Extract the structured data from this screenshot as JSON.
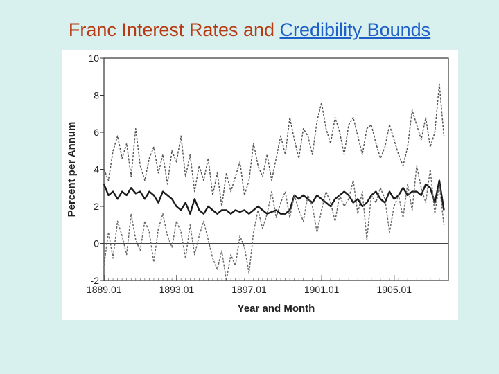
{
  "slide": {
    "title_main": "Franc Interest Rates and",
    "title_link": "Credibility Bounds",
    "accent_color": "#b83a12",
    "link_color": "#1f5fc8",
    "background": "#d9f1ee"
  },
  "chart_data": {
    "type": "line",
    "title": "",
    "xlabel": "Year and Month",
    "ylabel": "Percent per Annum",
    "ylim": [
      -2,
      10
    ],
    "yticks": [
      "-2",
      "0",
      "2",
      "4",
      "6",
      "8",
      "10"
    ],
    "xlim": [
      1889.0,
      1908.0
    ],
    "xticks": [
      "1889.01",
      "1893.01",
      "1897.01",
      "1901.01",
      "1905.01"
    ],
    "grid": false,
    "legend": "none",
    "reference_line": 0,
    "series": [
      {
        "style": "dashed-upper",
        "x": [
          1889.0,
          1889.25,
          1889.5,
          1889.75,
          1890.0,
          1890.25,
          1890.5,
          1890.75,
          1891.0,
          1891.25,
          1891.5,
          1891.75,
          1892.0,
          1892.25,
          1892.5,
          1892.75,
          1893.0,
          1893.25,
          1893.5,
          1893.75,
          1894.0,
          1894.25,
          1894.5,
          1894.75,
          1895.0,
          1895.25,
          1895.5,
          1895.75,
          1896.0,
          1896.25,
          1896.5,
          1896.75,
          1897.0,
          1897.25,
          1897.5,
          1897.75,
          1898.0,
          1898.25,
          1898.5,
          1898.75,
          1899.0,
          1899.25,
          1899.5,
          1899.75,
          1900.0,
          1900.25,
          1900.5,
          1900.75,
          1901.0,
          1901.25,
          1901.5,
          1901.75,
          1902.0,
          1902.25,
          1902.5,
          1902.75,
          1903.0,
          1903.25,
          1903.5,
          1903.75,
          1904.0,
          1904.25,
          1904.5,
          1904.75,
          1905.0,
          1905.25,
          1905.5,
          1905.75,
          1906.0,
          1906.25,
          1906.5,
          1906.75,
          1907.0,
          1907.25,
          1907.5,
          1907.75
        ],
        "y": [
          4.0,
          3.4,
          5.0,
          5.8,
          4.6,
          5.4,
          3.6,
          6.2,
          4.2,
          3.4,
          4.6,
          5.2,
          3.8,
          4.8,
          3.2,
          5.0,
          4.4,
          5.8,
          3.6,
          4.8,
          2.8,
          4.2,
          3.4,
          4.6,
          2.6,
          3.8,
          2.0,
          3.8,
          2.8,
          3.6,
          4.4,
          2.6,
          3.4,
          5.4,
          4.2,
          3.6,
          4.8,
          3.4,
          4.6,
          5.8,
          4.8,
          6.8,
          5.6,
          4.6,
          6.2,
          5.8,
          4.8,
          6.6,
          7.6,
          6.2,
          5.4,
          6.8,
          6.0,
          4.8,
          6.4,
          6.8,
          5.8,
          4.8,
          6.2,
          6.4,
          5.4,
          4.6,
          5.2,
          6.4,
          5.6,
          4.8,
          4.2,
          5.2,
          7.2,
          6.4,
          5.6,
          6.8,
          5.2,
          6.0,
          8.6,
          5.8
        ]
      },
      {
        "style": "solid-bold",
        "x": [
          1889.0,
          1889.25,
          1889.5,
          1889.75,
          1890.0,
          1890.25,
          1890.5,
          1890.75,
          1891.0,
          1891.25,
          1891.5,
          1891.75,
          1892.0,
          1892.25,
          1892.5,
          1892.75,
          1893.0,
          1893.25,
          1893.5,
          1893.75,
          1894.0,
          1894.25,
          1894.5,
          1894.75,
          1895.0,
          1895.25,
          1895.5,
          1895.75,
          1896.0,
          1896.25,
          1896.5,
          1896.75,
          1897.0,
          1897.25,
          1897.5,
          1897.75,
          1898.0,
          1898.25,
          1898.5,
          1898.75,
          1899.0,
          1899.25,
          1899.5,
          1899.75,
          1900.0,
          1900.25,
          1900.5,
          1900.75,
          1901.0,
          1901.25,
          1901.5,
          1901.75,
          1902.0,
          1902.25,
          1902.5,
          1902.75,
          1903.0,
          1903.25,
          1903.5,
          1903.75,
          1904.0,
          1904.25,
          1904.5,
          1904.75,
          1905.0,
          1905.25,
          1905.5,
          1905.75,
          1906.0,
          1906.25,
          1906.5,
          1906.75,
          1907.0,
          1907.25,
          1907.5,
          1907.75
        ],
        "y": [
          3.2,
          2.6,
          2.8,
          2.4,
          2.8,
          2.6,
          3.0,
          2.7,
          2.8,
          2.4,
          2.8,
          2.6,
          2.2,
          2.8,
          2.6,
          2.4,
          2.0,
          1.8,
          2.2,
          1.6,
          2.4,
          1.8,
          1.6,
          2.0,
          1.8,
          1.6,
          1.8,
          1.8,
          1.6,
          1.8,
          1.7,
          1.8,
          1.6,
          1.8,
          2.0,
          1.8,
          1.6,
          1.7,
          1.8,
          1.6,
          1.6,
          1.8,
          2.6,
          2.4,
          2.6,
          2.4,
          2.2,
          2.6,
          2.4,
          2.2,
          2.0,
          2.4,
          2.6,
          2.8,
          2.6,
          2.2,
          2.4,
          2.0,
          2.2,
          2.6,
          2.8,
          2.4,
          2.2,
          2.8,
          2.4,
          2.6,
          3.0,
          2.6,
          2.8,
          2.8,
          2.6,
          3.2,
          3.0,
          2.2,
          3.4,
          1.8
        ]
      },
      {
        "style": "dashed-lower",
        "x": [
          1889.0,
          1889.25,
          1889.5,
          1889.75,
          1890.0,
          1890.25,
          1890.5,
          1890.75,
          1891.0,
          1891.25,
          1891.5,
          1891.75,
          1892.0,
          1892.25,
          1892.5,
          1892.75,
          1893.0,
          1893.25,
          1893.5,
          1893.75,
          1894.0,
          1894.25,
          1894.5,
          1894.75,
          1895.0,
          1895.25,
          1895.5,
          1895.75,
          1896.0,
          1896.25,
          1896.5,
          1896.75,
          1897.0,
          1897.25,
          1897.5,
          1897.75,
          1898.0,
          1898.25,
          1898.5,
          1898.75,
          1899.0,
          1899.25,
          1899.5,
          1899.75,
          1900.0,
          1900.25,
          1900.5,
          1900.75,
          1901.0,
          1901.25,
          1901.5,
          1901.75,
          1902.0,
          1902.25,
          1902.5,
          1902.75,
          1903.0,
          1903.25,
          1903.5,
          1903.75,
          1904.0,
          1904.25,
          1904.5,
          1904.75,
          1905.0,
          1905.25,
          1905.5,
          1905.75,
          1906.0,
          1906.25,
          1906.5,
          1906.75,
          1907.0,
          1907.25,
          1907.5,
          1907.75
        ],
        "y": [
          -1.2,
          0.6,
          -0.8,
          1.2,
          0.4,
          -0.6,
          1.6,
          0.2,
          -0.4,
          1.2,
          0.6,
          -1.0,
          0.8,
          1.6,
          0.4,
          -0.2,
          1.2,
          0.6,
          -0.8,
          1.0,
          -0.6,
          0.4,
          1.2,
          0.2,
          -0.8,
          -1.4,
          -0.4,
          -2.0,
          -0.6,
          -1.2,
          0.4,
          -0.2,
          -1.6,
          0.6,
          1.8,
          0.8,
          1.6,
          2.8,
          1.4,
          2.2,
          2.8,
          1.4,
          2.6,
          1.8,
          1.2,
          2.6,
          2.0,
          0.6,
          1.8,
          2.8,
          2.2,
          1.2,
          2.6,
          2.0,
          2.4,
          3.4,
          1.6,
          2.8,
          0.2,
          2.6,
          2.2,
          3.0,
          2.4,
          0.6,
          2.0,
          2.6,
          1.4,
          3.2,
          1.8,
          4.2,
          3.0,
          2.2,
          4.0,
          1.6,
          3.2,
          1.0
        ]
      }
    ]
  }
}
